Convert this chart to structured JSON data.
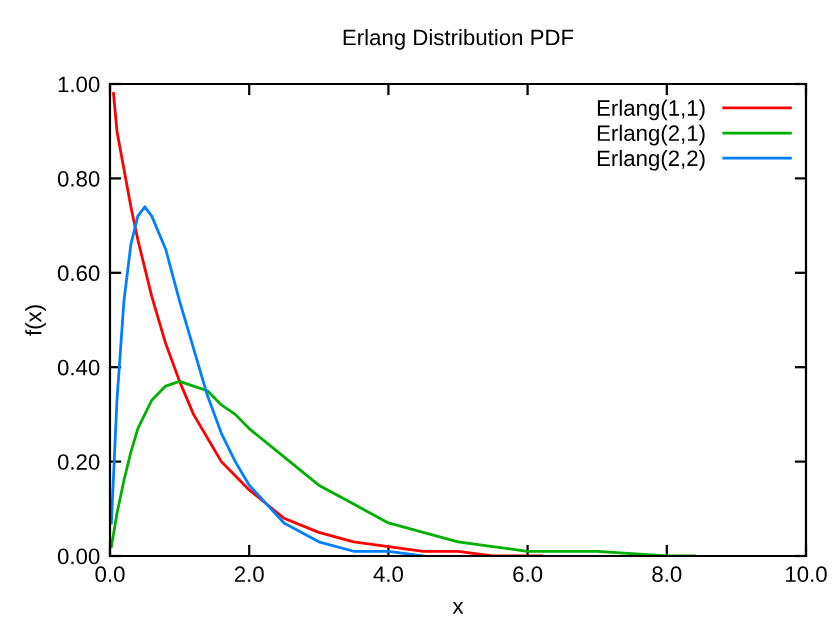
{
  "chart_data": {
    "type": "line",
    "title": "Erlang Distribution PDF",
    "xlabel": "x",
    "ylabel": "f(x)",
    "xlim": [
      0,
      10
    ],
    "ylim": [
      0,
      1
    ],
    "xticks": [
      {
        "value": 0,
        "label": "0.0"
      },
      {
        "value": 2,
        "label": "2.0"
      },
      {
        "value": 4,
        "label": "4.0"
      },
      {
        "value": 6,
        "label": "6.0"
      },
      {
        "value": 8,
        "label": "8.0"
      },
      {
        "value": 10,
        "label": "10.0"
      }
    ],
    "yticks": [
      {
        "value": 0,
        "label": "0.00"
      },
      {
        "value": 0.2,
        "label": "0.20"
      },
      {
        "value": 0.4,
        "label": "0.40"
      },
      {
        "value": 0.6,
        "label": "0.60"
      },
      {
        "value": 0.8,
        "label": "0.80"
      },
      {
        "value": 1,
        "label": "1.00"
      }
    ],
    "grid": false,
    "legend": "top right",
    "marker": "none",
    "line_style": "solid",
    "series": [
      {
        "name": "Erlang(1,1)",
        "color": "#ff0000",
        "x": [
          0.05,
          0.1,
          0.2,
          0.3,
          0.4,
          0.5,
          0.6,
          0.8,
          1.0,
          1.2,
          1.4,
          1.6,
          1.8,
          2.0,
          2.5,
          3.0,
          3.5,
          4.0,
          4.5,
          5.0,
          5.5,
          6.2
        ],
        "values": [
          0.98,
          0.9,
          0.82,
          0.74,
          0.67,
          0.61,
          0.55,
          0.45,
          0.37,
          0.3,
          0.25,
          0.2,
          0.17,
          0.14,
          0.08,
          0.05,
          0.03,
          0.02,
          0.01,
          0.01,
          0.0,
          0.0
        ]
      },
      {
        "name": "Erlang(2,1)",
        "color": "#00b000",
        "x": [
          0.02,
          0.1,
          0.2,
          0.3,
          0.4,
          0.5,
          0.6,
          0.8,
          1.0,
          1.2,
          1.4,
          1.6,
          1.8,
          2.0,
          2.5,
          3.0,
          3.5,
          4.0,
          4.5,
          5.0,
          5.5,
          6.0,
          7.0,
          8.0,
          8.4
        ],
        "values": [
          0.02,
          0.09,
          0.16,
          0.22,
          0.27,
          0.3,
          0.33,
          0.36,
          0.37,
          0.36,
          0.35,
          0.32,
          0.3,
          0.27,
          0.21,
          0.15,
          0.11,
          0.07,
          0.05,
          0.03,
          0.02,
          0.01,
          0.01,
          0.0,
          0.0
        ]
      },
      {
        "name": "Erlang(2,2)",
        "color": "#0080ff",
        "x": [
          0.02,
          0.1,
          0.2,
          0.3,
          0.4,
          0.5,
          0.6,
          0.8,
          1.0,
          1.2,
          1.4,
          1.6,
          1.8,
          2.0,
          2.5,
          3.0,
          3.5,
          4.0,
          4.5
        ],
        "values": [
          0.07,
          0.33,
          0.54,
          0.66,
          0.72,
          0.74,
          0.72,
          0.65,
          0.54,
          0.44,
          0.34,
          0.26,
          0.2,
          0.15,
          0.07,
          0.03,
          0.01,
          0.01,
          0.0
        ]
      }
    ]
  }
}
